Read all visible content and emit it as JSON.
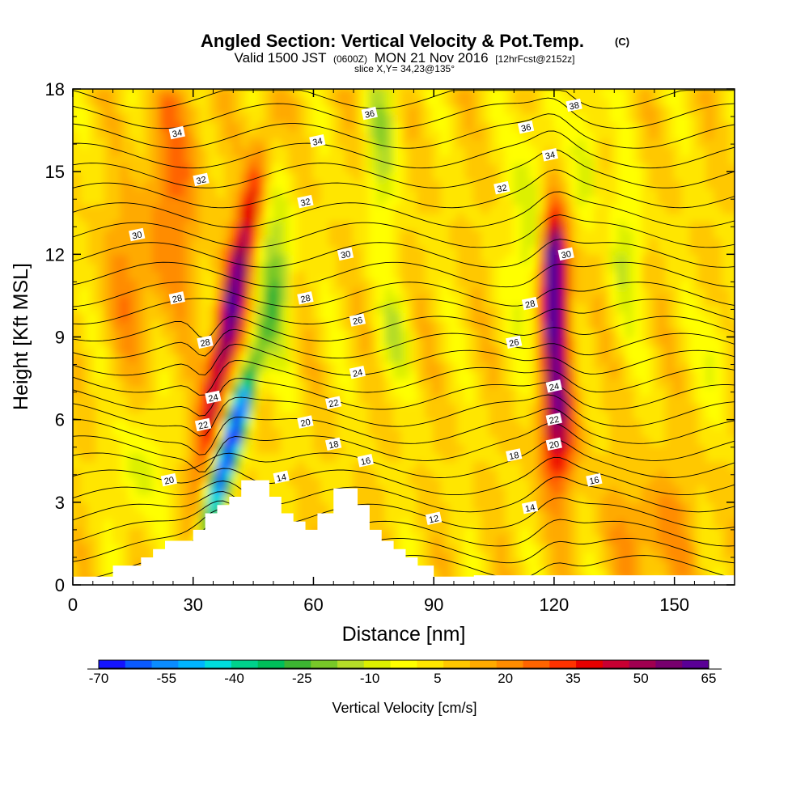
{
  "chart_data": {
    "type": "heatmap",
    "title": "Angled Section: Vertical Velocity & Pot.Temp.",
    "title_mark": "(C)",
    "subtitle_parts": [
      "Valid 1500 JST",
      "(0600Z)",
      "MON 21 Nov 2016",
      "[12hrFcst@2152z]"
    ],
    "subtitle2": "slice X,Y= 34,23@135°",
    "xlabel": "Distance [nm]",
    "ylabel": "Height [Kft MSL]",
    "xlim": [
      0,
      165
    ],
    "ylim": [
      0,
      18
    ],
    "x_ticks": [
      "0",
      "30",
      "60",
      "90",
      "120",
      "150"
    ],
    "x_tick_values": [
      0,
      30,
      60,
      90,
      120,
      150
    ],
    "y_ticks": [
      "0",
      "3",
      "6",
      "9",
      "12",
      "15",
      "18"
    ],
    "y_tick_values": [
      0,
      3,
      6,
      9,
      12,
      15,
      18
    ],
    "colorbar": {
      "label": "Vertical Velocity [cm/s]",
      "tick_labels": [
        "-70",
        "-55",
        "-40",
        "-25",
        "-10",
        "5",
        "20",
        "35",
        "50",
        "65"
      ],
      "range": [
        -70,
        65
      ],
      "colors": [
        "#1414ff",
        "#0a5aff",
        "#0a8cff",
        "#00b4ff",
        "#00dcdc",
        "#00d28c",
        "#00be5a",
        "#3cb432",
        "#78c828",
        "#b4dc28",
        "#dcf000",
        "#ffff00",
        "#ffe600",
        "#ffc800",
        "#ffaa00",
        "#ff8c00",
        "#ff6400",
        "#ff3200",
        "#e60000",
        "#c80032",
        "#a00050",
        "#78006e",
        "#5a0096"
      ]
    },
    "terrain": [
      [
        0,
        0.3
      ],
      [
        10,
        0.3
      ],
      [
        10,
        0.7
      ],
      [
        17,
        0.7
      ],
      [
        17,
        1.0
      ],
      [
        20,
        1.0
      ],
      [
        20,
        1.3
      ],
      [
        23,
        1.3
      ],
      [
        23,
        1.6
      ],
      [
        30,
        1.6
      ],
      [
        30,
        2.0
      ],
      [
        33,
        2.0
      ],
      [
        33,
        2.6
      ],
      [
        36,
        2.6
      ],
      [
        36,
        2.9
      ],
      [
        39,
        2.9
      ],
      [
        39,
        3.2
      ],
      [
        42,
        3.2
      ],
      [
        42,
        3.8
      ],
      [
        49,
        3.8
      ],
      [
        49,
        3.2
      ],
      [
        52,
        3.2
      ],
      [
        52,
        2.6
      ],
      [
        55,
        2.6
      ],
      [
        55,
        2.3
      ],
      [
        58,
        2.3
      ],
      [
        58,
        2.0
      ],
      [
        61,
        2.0
      ],
      [
        61,
        2.6
      ],
      [
        65,
        2.6
      ],
      [
        65,
        3.5
      ],
      [
        71,
        3.5
      ],
      [
        71,
        2.9
      ],
      [
        74,
        2.9
      ],
      [
        74,
        2.0
      ],
      [
        77,
        2.0
      ],
      [
        77,
        1.6
      ],
      [
        80,
        1.6
      ],
      [
        80,
        1.3
      ],
      [
        83,
        1.3
      ],
      [
        83,
        1.0
      ],
      [
        86,
        1.0
      ],
      [
        86,
        0.7
      ],
      [
        90,
        0.7
      ],
      [
        90,
        0.3
      ],
      [
        100,
        0.3
      ],
      [
        100,
        0.35
      ],
      [
        165,
        0.35
      ]
    ],
    "theta_levels": [
      12,
      13,
      14,
      15,
      16,
      17,
      18,
      19,
      20,
      21,
      22,
      23,
      24,
      25,
      26,
      27,
      28,
      29,
      30,
      31,
      32,
      33,
      34,
      35,
      36,
      37,
      38
    ],
    "contour_labels": [
      {
        "text": "34",
        "x": 26,
        "y": 16.4
      },
      {
        "text": "32",
        "x": 32,
        "y": 14.7
      },
      {
        "text": "30",
        "x": 16,
        "y": 12.7
      },
      {
        "text": "28",
        "x": 26,
        "y": 10.4
      },
      {
        "text": "28",
        "x": 33,
        "y": 8.8
      },
      {
        "text": "24",
        "x": 35,
        "y": 6.8
      },
      {
        "text": "22",
        "x": 32.5,
        "y": 5.8
      },
      {
        "text": "20",
        "x": 24,
        "y": 3.8
      },
      {
        "text": "36",
        "x": 74,
        "y": 17.1
      },
      {
        "text": "34",
        "x": 61,
        "y": 16.1
      },
      {
        "text": "32",
        "x": 58,
        "y": 13.9
      },
      {
        "text": "30",
        "x": 68,
        "y": 12.0
      },
      {
        "text": "28",
        "x": 58,
        "y": 10.4
      },
      {
        "text": "26",
        "x": 71,
        "y": 9.6
      },
      {
        "text": "24",
        "x": 71,
        "y": 7.7
      },
      {
        "text": "22",
        "x": 65,
        "y": 6.6
      },
      {
        "text": "20",
        "x": 58,
        "y": 5.9
      },
      {
        "text": "18",
        "x": 65,
        "y": 5.1
      },
      {
        "text": "16",
        "x": 73,
        "y": 4.5
      },
      {
        "text": "14",
        "x": 52,
        "y": 3.9
      },
      {
        "text": "12",
        "x": 90,
        "y": 2.4
      },
      {
        "text": "38",
        "x": 125,
        "y": 17.4
      },
      {
        "text": "36",
        "x": 113,
        "y": 16.6
      },
      {
        "text": "34",
        "x": 119,
        "y": 15.6
      },
      {
        "text": "32",
        "x": 107,
        "y": 14.4
      },
      {
        "text": "30",
        "x": 123,
        "y": 12.0
      },
      {
        "text": "28",
        "x": 114,
        "y": 10.2
      },
      {
        "text": "26",
        "x": 110,
        "y": 8.8
      },
      {
        "text": "24",
        "x": 120,
        "y": 7.2
      },
      {
        "text": "22",
        "x": 120,
        "y": 6.0
      },
      {
        "text": "20",
        "x": 120,
        "y": 5.1
      },
      {
        "text": "18",
        "x": 110,
        "y": 4.7
      },
      {
        "text": "16",
        "x": 130,
        "y": 3.8
      },
      {
        "text": "14",
        "x": 114,
        "y": 2.8
      }
    ]
  }
}
